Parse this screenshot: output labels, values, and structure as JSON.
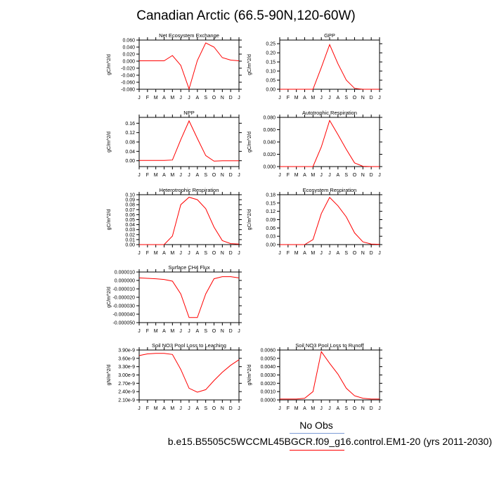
{
  "title": "Canadian Arctic (66.5-90N,120-60W)",
  "legend": {
    "obs_label": "No Obs",
    "model_label": "b.e15.B5505C5WCCML45BGCR.f09_g16.control.EM1-20 (yrs 2011-2030)",
    "obs_color": "#7a9bd6",
    "model_color": "#ff0000"
  },
  "chart_data": [
    {
      "type": "line",
      "title": "Net Ecosystem Exchange",
      "ylabel": "gC/m^2/d",
      "categories": [
        "J",
        "F",
        "M",
        "A",
        "M",
        "J",
        "J",
        "A",
        "S",
        "O",
        "N",
        "D",
        "J"
      ],
      "ylim": [
        -0.08,
        0.06
      ],
      "yticks": [
        -0.08,
        -0.06,
        -0.04,
        -0.02,
        0.0,
        0.02,
        0.04,
        0.06
      ],
      "ytick_labels": [
        "-0.080",
        "-0.060",
        "-0.040",
        "-0.020",
        "0.000",
        "0.020",
        "0.040",
        "0.060"
      ],
      "series": [
        {
          "values": [
            0.001,
            0.001,
            0.001,
            0.001,
            0.016,
            -0.012,
            -0.079,
            0.002,
            0.052,
            0.04,
            0.01,
            0.003,
            0.001
          ]
        }
      ]
    },
    {
      "type": "line",
      "title": "GPP",
      "ylabel": "gC/m^2/d",
      "categories": [
        "J",
        "F",
        "M",
        "A",
        "M",
        "J",
        "J",
        "A",
        "S",
        "O",
        "N",
        "D",
        "J"
      ],
      "ylim": [
        0,
        0.27
      ],
      "yticks": [
        0.0,
        0.05,
        0.1,
        0.15,
        0.2,
        0.25
      ],
      "ytick_labels": [
        "0.00",
        "0.05",
        "0.10",
        "0.15",
        "0.20",
        "0.25"
      ],
      "series": [
        {
          "values": [
            0,
            0,
            0,
            0,
            0,
            0.12,
            0.245,
            0.14,
            0.05,
            0.005,
            0,
            0,
            0
          ]
        }
      ]
    },
    {
      "type": "line",
      "title": "NPP",
      "ylabel": "gC/m^2/d",
      "categories": [
        "J",
        "F",
        "M",
        "A",
        "M",
        "J",
        "J",
        "A",
        "S",
        "O",
        "N",
        "D",
        "J"
      ],
      "ylim": [
        -0.025,
        0.185
      ],
      "yticks": [
        0.0,
        0.04,
        0.08,
        0.12,
        0.16
      ],
      "ytick_labels": [
        "0.00",
        "0.04",
        "0.08",
        "0.12",
        "0.16"
      ],
      "series": [
        {
          "values": [
            0.001,
            0.001,
            0.001,
            0.001,
            0.003,
            0.09,
            0.17,
            0.095,
            0.022,
            -0.002,
            0.0,
            0.0,
            0.0
          ]
        }
      ]
    },
    {
      "type": "line",
      "title": "Autotrophic Respiration",
      "ylabel": "gC/m^2/d",
      "categories": [
        "J",
        "F",
        "M",
        "A",
        "M",
        "J",
        "J",
        "A",
        "S",
        "O",
        "N",
        "D",
        "J"
      ],
      "ylim": [
        0,
        0.08
      ],
      "yticks": [
        0.0,
        0.02,
        0.04,
        0.06,
        0.08
      ],
      "ytick_labels": [
        "0.000",
        "0.020",
        "0.040",
        "0.060",
        "0.080"
      ],
      "series": [
        {
          "values": [
            0,
            0,
            0,
            0,
            0,
            0.032,
            0.075,
            0.052,
            0.028,
            0.006,
            0.0005,
            0,
            0
          ]
        }
      ]
    },
    {
      "type": "line",
      "title": "Heterotrophic Respiration",
      "ylabel": "gC/m^2/d",
      "categories": [
        "J",
        "F",
        "M",
        "A",
        "M",
        "J",
        "J",
        "A",
        "S",
        "O",
        "N",
        "D",
        "J"
      ],
      "ylim": [
        0,
        0.1
      ],
      "yticks": [
        0.0,
        0.01,
        0.02,
        0.03,
        0.04,
        0.05,
        0.06,
        0.07,
        0.08,
        0.09,
        0.1
      ],
      "ytick_labels": [
        "0.00",
        "0.01",
        "0.02",
        "0.03",
        "0.04",
        "0.05",
        "0.06",
        "0.07",
        "0.08",
        "0.09",
        "0.10"
      ],
      "series": [
        {
          "values": [
            0,
            0,
            0,
            0,
            0.017,
            0.08,
            0.095,
            0.09,
            0.072,
            0.035,
            0.008,
            0.002,
            0.001
          ]
        }
      ]
    },
    {
      "type": "line",
      "title": "Ecosystem Respiration",
      "ylabel": "gC/m^2/d",
      "categories": [
        "J",
        "F",
        "M",
        "A",
        "M",
        "J",
        "J",
        "A",
        "S",
        "O",
        "N",
        "D",
        "J"
      ],
      "ylim": [
        0,
        0.18
      ],
      "yticks": [
        0.0,
        0.03,
        0.06,
        0.09,
        0.12,
        0.15,
        0.18
      ],
      "ytick_labels": [
        "0.00",
        "0.03",
        "0.06",
        "0.09",
        "0.12",
        "0.15",
        "0.18"
      ],
      "series": [
        {
          "values": [
            0,
            0,
            0,
            0,
            0.018,
            0.112,
            0.17,
            0.14,
            0.1,
            0.042,
            0.01,
            0.002,
            0.001
          ]
        }
      ]
    },
    {
      "type": "line",
      "title": "Surface CH4 Flux",
      "ylabel": "gC/m^2/d",
      "categories": [
        "J",
        "F",
        "M",
        "A",
        "M",
        "J",
        "J",
        "A",
        "S",
        "O",
        "N",
        "D",
        "J"
      ],
      "ylim": [
        -5e-05,
        1e-05
      ],
      "yticks": [
        1e-05,
        0.0,
        -1e-05,
        -2e-05,
        -3e-05,
        -4e-05,
        -5e-05
      ],
      "ytick_labels": [
        "0.000010",
        "0.000000",
        "-0.000010",
        "-0.000020",
        "-0.000030",
        "-0.000040",
        "-0.000050"
      ],
      "series": [
        {
          "values": [
            3e-06,
            2.5e-06,
            2e-06,
            1.2e-06,
            -8e-07,
            -1.6e-05,
            -4.4e-05,
            -4.4e-05,
            -1.6e-05,
            2e-06,
            4.5e-06,
            4.5e-06,
            3e-06
          ]
        }
      ]
    },
    {
      "type": "line",
      "title": "Soil NO3 Pool Loss to Leaching",
      "ylabel": "gN/m^2/d",
      "categories": [
        "J",
        "F",
        "M",
        "A",
        "M",
        "J",
        "J",
        "A",
        "S",
        "O",
        "N",
        "D",
        "J"
      ],
      "ylim": [
        2.1e-09,
        3.9e-09
      ],
      "yticks": [
        2.1e-09,
        2.4e-09,
        2.7e-09,
        3e-09,
        3.3e-09,
        3.6e-09,
        3.9e-09
      ],
      "ytick_labels": [
        "2.10e-9",
        "2.40e-9",
        "2.70e-9",
        "3.00e-9",
        "3.30e-9",
        "3.60e-9",
        "3.90e-9"
      ],
      "series": [
        {
          "values": [
            3.7e-09,
            3.76e-09,
            3.78e-09,
            3.78e-09,
            3.74e-09,
            3.2e-09,
            2.52e-09,
            2.38e-09,
            2.47e-09,
            2.8e-09,
            3.1e-09,
            3.35e-09,
            3.55e-09
          ]
        }
      ]
    },
    {
      "type": "line",
      "title": "Soil NO3 Pool Loss to Runoff",
      "ylabel": "gN/m^2/d",
      "categories": [
        "J",
        "F",
        "M",
        "A",
        "M",
        "J",
        "J",
        "A",
        "S",
        "O",
        "N",
        "D",
        "J"
      ],
      "ylim": [
        0,
        0.006
      ],
      "yticks": [
        0.0,
        0.001,
        0.002,
        0.003,
        0.004,
        0.005,
        0.006
      ],
      "ytick_labels": [
        "0.0000",
        "0.0010",
        "0.0020",
        "0.0030",
        "0.0040",
        "0.0050",
        "0.0060"
      ],
      "series": [
        {
          "values": [
            0.0001,
            0.0001,
            0.0001,
            0.0002,
            0.001,
            0.0058,
            0.0044,
            0.0031,
            0.0014,
            0.0005,
            0.0002,
            0.0001,
            0.0001
          ]
        }
      ]
    }
  ]
}
